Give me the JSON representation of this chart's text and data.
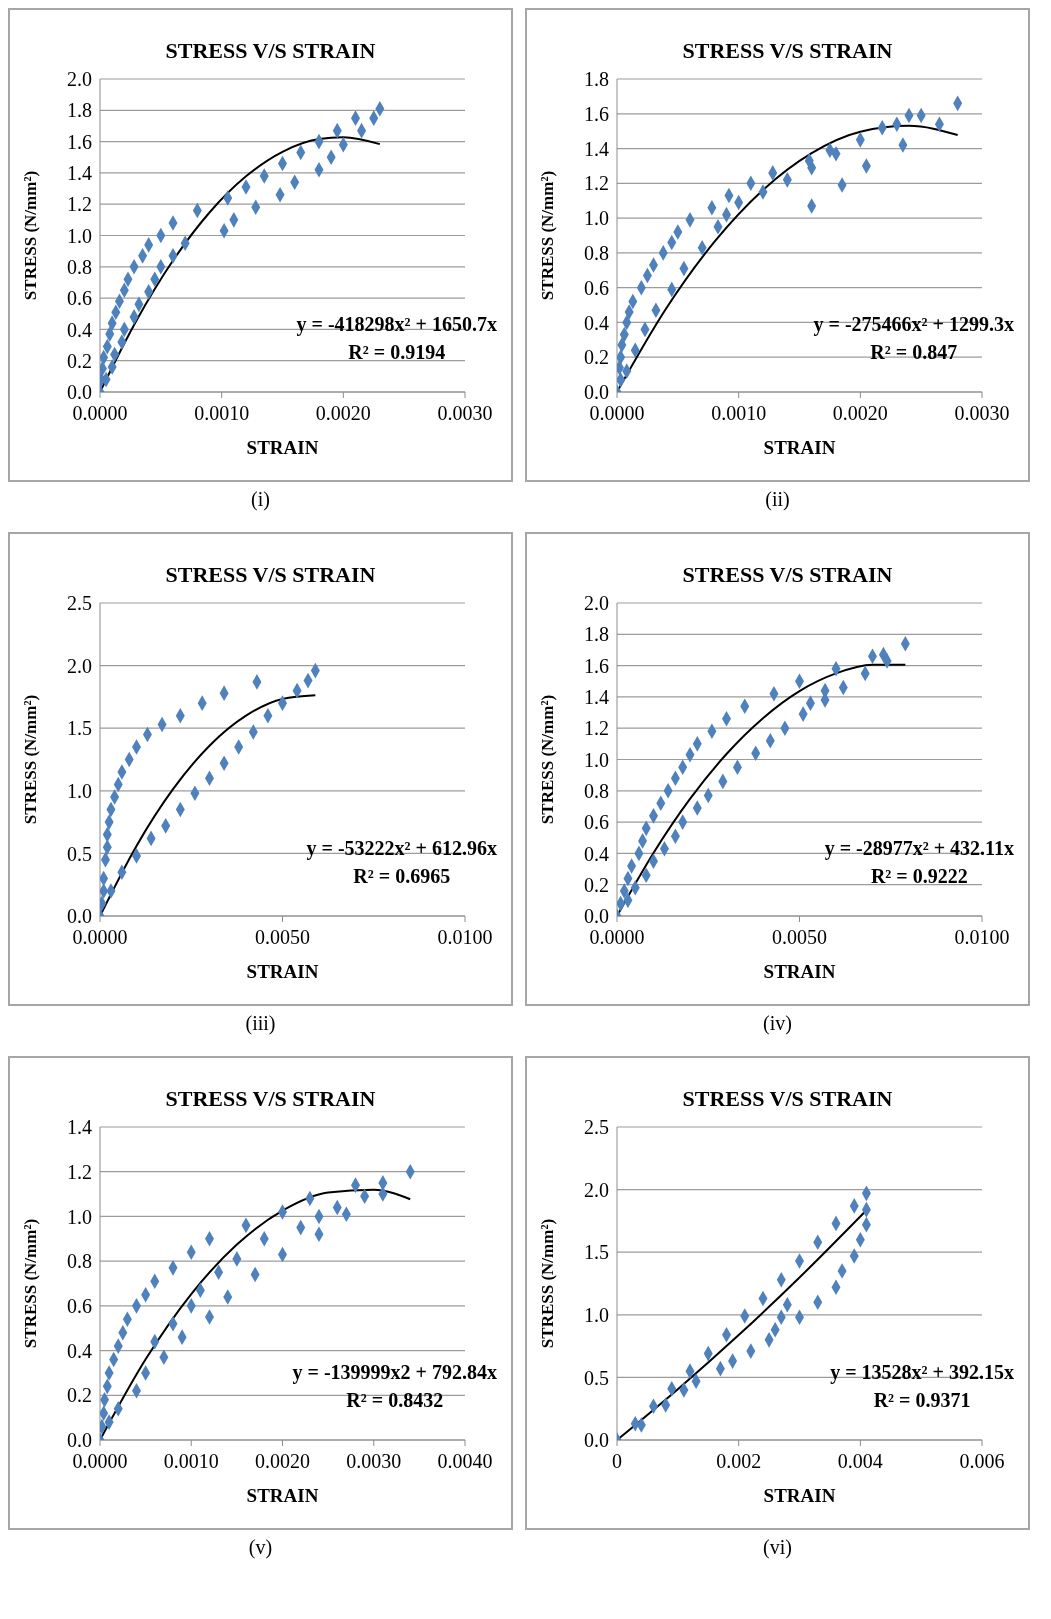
{
  "chart_data": [
    {
      "type": "scatter",
      "title": "STRESS V/S STRAIN",
      "xlabel": "STRAIN",
      "ylabel": "STRESS (N/mm²)",
      "grid": "y",
      "marker": "diamond",
      "annotations": [
        "y = -418298x² + 1650.7x",
        "R² = 0.9194",
        "(i)"
      ],
      "xlim": [
        0,
        0.003
      ],
      "xticks": [
        {
          "value": 0,
          "label": "0.0000"
        },
        {
          "value": 0.001,
          "label": "0.0010"
        },
        {
          "value": 0.002,
          "label": "0.0020"
        },
        {
          "value": 0.003,
          "label": "0.0030"
        }
      ],
      "ylim": [
        0,
        2
      ],
      "yticks": [
        {
          "value": 0,
          "label": "0.0"
        },
        0.2,
        0.4,
        0.6,
        0.8,
        {
          "value": 1,
          "label": "1.0"
        },
        1.2,
        1.4,
        1.6,
        1.8,
        {
          "value": 2,
          "label": "2.0"
        }
      ],
      "series": [
        {
          "color": "#4f81bd",
          "x": [
            0,
            1e-05,
            2e-05,
            3e-05,
            6e-05,
            8e-05,
            0.0001,
            0.00013,
            0.00016,
            0.0002,
            0.00023,
            0.00028,
            0.00035,
            0.0004,
            0.0005,
            0.0006,
            0.0008,
            0.00105,
            0.0012,
            0.00135,
            0.0015,
            0.00165,
            0.0018,
            0.00195,
            0.0021,
            0.0023,
            5e-05,
            0.0001,
            0.00012,
            0.00018,
            0.0002,
            0.00028,
            0.00032,
            0.0004,
            0.00045,
            0.0005,
            0.0006,
            0.0007,
            0.00102,
            0.0011,
            0.00128,
            0.00148,
            0.0016,
            0.0018,
            0.0019,
            0.002,
            0.00215,
            0.00225
          ],
          "values": [
            0,
            0.08,
            0.15,
            0.22,
            0.29,
            0.37,
            0.44,
            0.51,
            0.58,
            0.65,
            0.72,
            0.8,
            0.87,
            0.94,
            1.0,
            1.08,
            1.16,
            1.24,
            1.31,
            1.38,
            1.46,
            1.53,
            1.6,
            1.67,
            1.75,
            1.81,
            0.08,
            0.16,
            0.24,
            0.32,
            0.4,
            0.48,
            0.56,
            0.64,
            0.72,
            0.8,
            0.87,
            0.95,
            1.03,
            1.1,
            1.18,
            1.26,
            1.34,
            1.42,
            1.5,
            1.58,
            1.67,
            1.75
          ]
        },
        {
          "type": "line",
          "marker": "none",
          "color": "#000000",
          "x": [
            0,
            0.0003,
            0.0006,
            0.0009,
            0.0012,
            0.0015,
            0.0018,
            0.002,
            0.0023
          ],
          "values": [
            0,
            0.457,
            0.84,
            1.147,
            1.378,
            1.535,
            1.616,
            1.628,
            1.584
          ]
        }
      ]
    },
    {
      "type": "scatter",
      "title": "STRESS V/S STRAIN",
      "xlabel": "STRAIN",
      "ylabel": "STRESS (N/mm²)",
      "grid": "y",
      "marker": "diamond",
      "annotations": [
        "y = -275466x² + 1299.3x",
        "R² = 0.847",
        "(ii)"
      ],
      "xlim": [
        0,
        0.003
      ],
      "xticks": [
        {
          "value": 0,
          "label": "0.0000"
        },
        {
          "value": 0.001,
          "label": "0.0010"
        },
        {
          "value": 0.002,
          "label": "0.0020"
        },
        {
          "value": 0.003,
          "label": "0.0030"
        }
      ],
      "ylim": [
        0,
        1.8
      ],
      "yticks": [
        {
          "value": 0,
          "label": "0.0"
        },
        0.2,
        0.4,
        0.6,
        0.8,
        {
          "value": 1,
          "label": "1.0"
        },
        1.2,
        1.4,
        1.6,
        1.8
      ],
      "series": [
        {
          "color": "#4f81bd",
          "x": [
            0,
            1e-05,
            2e-05,
            3e-05,
            4e-05,
            6e-05,
            8e-05,
            0.0001,
            0.00013,
            0.0002,
            0.00025,
            0.0003,
            0.00038,
            0.00045,
            0.0005,
            0.0006,
            0.00078,
            0.00092,
            0.0011,
            0.00128,
            0.00158,
            0.00175,
            0.002,
            0.00218,
            0.0023,
            0.0024,
            0.0025,
            0.0028,
            3e-05,
            8e-05,
            0.00015,
            0.00023,
            0.00032,
            0.00045,
            0.00055,
            0.0007,
            0.00083,
            0.0009,
            0.001,
            0.0012,
            0.0014,
            0.0016,
            0.00185,
            0.00205,
            0.00235,
            0.00265,
            0.0018,
            0.0016
          ],
          "values": [
            0,
            null,
            0.14,
            0.2,
            0.27,
            0.33,
            0.4,
            0.46,
            0.52,
            0.6,
            0.67,
            0.73,
            0.8,
            0.86,
            0.92,
            0.99,
            1.06,
            1.13,
            1.2,
            1.26,
            1.33,
            1.39,
            1.45,
            1.52,
            1.54,
            1.59,
            1.59,
            1.66,
            0.07,
            0.12,
            0.24,
            0.36,
            0.47,
            0.59,
            0.71,
            0.83,
            0.95,
            1.02,
            1.09,
            1.15,
            1.22,
            1.07,
            1.19,
            1.3,
            1.42,
            1.54,
            1.37,
            1.29
          ]
        },
        {
          "type": "line",
          "marker": "none",
          "color": "#000000",
          "x": [
            0,
            0.0004,
            0.0008,
            0.0012,
            0.0016,
            0.002,
            0.0024,
            0.0028
          ],
          "values": [
            0,
            0.476,
            0.863,
            1.162,
            1.374,
            1.497,
            1.531,
            1.478
          ]
        }
      ]
    },
    {
      "type": "scatter",
      "title": "STRESS V/S STRAIN",
      "xlabel": "STRAIN",
      "ylabel": "STRESS (N/mm²)",
      "grid": "y",
      "marker": "diamond",
      "annotations": [
        "y = -53222x² + 612.96x",
        "R² = 0.6965",
        "(iii)"
      ],
      "xlim": [
        0,
        0.01
      ],
      "xticks": [
        {
          "value": 0,
          "label": "0.0000"
        },
        {
          "value": 0.005,
          "label": "0.0050"
        },
        {
          "value": 0.01,
          "label": "0.0100"
        }
      ],
      "ylim": [
        0,
        2.5
      ],
      "yticks": [
        {
          "value": 0,
          "label": "0.0"
        },
        0.5,
        {
          "value": 1,
          "label": "1.0"
        },
        1.5,
        {
          "value": 2,
          "label": "2.0"
        },
        2.5
      ],
      "series": [
        {
          "color": "#4f81bd",
          "x": [
            0,
            5e-05,
            0.0001,
            0.0001,
            0.00015,
            0.0002,
            0.0002,
            0.00025,
            0.0003,
            0.0004,
            0.0005,
            0.0006,
            0.0008,
            0.001,
            0.0013,
            0.0017,
            0.0022,
            0.0028,
            0.0034,
            0.0043,
            0.0003,
            0.0006,
            0.001,
            0.0014,
            0.0018,
            0.0022,
            0.0026,
            0.003,
            0.0034,
            0.0038,
            0.0042,
            0.0046,
            0.005,
            0.0054,
            0.0057,
            0.0059
          ],
          "values": [
            0,
            0.1,
            0.2,
            0.3,
            0.45,
            0.55,
            0.65,
            0.75,
            0.85,
            0.95,
            1.05,
            1.15,
            1.25,
            1.35,
            1.45,
            1.53,
            1.6,
            1.7,
            1.78,
            1.87,
            0.2,
            0.35,
            0.48,
            0.62,
            0.72,
            0.85,
            0.98,
            1.1,
            1.22,
            1.35,
            1.47,
            1.6,
            1.7,
            1.8,
            1.88,
            1.96
          ]
        },
        {
          "type": "line",
          "marker": "none",
          "color": "#000000",
          "x": [
            0,
            0.001,
            0.002,
            0.003,
            0.004,
            0.005,
            0.0059
          ],
          "values": [
            0,
            0.56,
            1.013,
            1.36,
            1.6,
            1.734,
            1.763
          ]
        }
      ]
    },
    {
      "type": "scatter",
      "title": "STRESS V/S STRAIN",
      "xlabel": "STRAIN",
      "ylabel": "STRESS (N/mm²)",
      "grid": "y",
      "marker": "diamond",
      "annotations": [
        "y = -28977x² + 432.11x",
        "R² = 0.9222",
        "(iv)"
      ],
      "xlim": [
        0,
        0.01
      ],
      "xticks": [
        {
          "value": 0,
          "label": "0.0000"
        },
        {
          "value": 0.005,
          "label": "0.0050"
        },
        {
          "value": 0.01,
          "label": "0.0100"
        }
      ],
      "ylim": [
        0,
        2
      ],
      "yticks": [
        {
          "value": 0,
          "label": "0.0"
        },
        0.2,
        0.4,
        0.6,
        0.8,
        {
          "value": 1,
          "label": "1.0"
        },
        1.2,
        1.4,
        1.6,
        1.8,
        {
          "value": 2,
          "label": "2.0"
        }
      ],
      "series": [
        {
          "color": "#4f81bd",
          "x": [
            0,
            0.0001,
            0.0002,
            0.0003,
            0.0004,
            0.0006,
            0.0007,
            0.0008,
            0.001,
            0.0012,
            0.0014,
            0.0016,
            0.0018,
            0.002,
            0.0022,
            0.0026,
            0.003,
            0.0035,
            0.0043,
            0.005,
            0.006,
            0.007,
            0.0073,
            0.0079,
            0.0003,
            0.0005,
            0.0008,
            0.001,
            0.0013,
            0.0016,
            0.0018,
            0.0022,
            0.0025,
            0.0029,
            0.0033,
            0.0038,
            0.0042,
            0.0046,
            0.0051,
            0.0053,
            0.0057,
            0.0062,
            0.0068,
            0.0074,
            0.0057
          ],
          "values": [
            0,
            0.08,
            0.16,
            0.24,
            0.32,
            0.4,
            0.48,
            0.56,
            0.64,
            0.72,
            0.8,
            0.88,
            0.95,
            1.03,
            1.1,
            1.18,
            1.26,
            1.34,
            1.42,
            1.5,
            1.58,
            1.66,
            1.67,
            1.74,
            0.1,
            0.18,
            0.26,
            0.35,
            0.43,
            0.51,
            0.6,
            0.69,
            0.77,
            0.86,
            0.95,
            1.04,
            1.12,
            1.2,
            1.29,
            1.36,
            1.38,
            1.46,
            1.55,
            1.63,
            1.44
          ]
        },
        {
          "type": "line",
          "marker": "none",
          "color": "#000000",
          "x": [
            0,
            0.001,
            0.002,
            0.003,
            0.004,
            0.005,
            0.006,
            0.007,
            0.0079
          ],
          "values": [
            0,
            0.403,
            0.748,
            1.035,
            1.264,
            1.437,
            1.55,
            1.605,
            1.606
          ]
        }
      ]
    },
    {
      "type": "scatter",
      "title": "STRESS V/S STRAIN",
      "xlabel": "STRAIN",
      "ylabel": "STRESS (N/mm²)",
      "grid": "y",
      "marker": "diamond",
      "annotations": [
        "y = -139999x2 + 792.84x",
        "R² = 0.8432",
        "(v)"
      ],
      "xlim": [
        0,
        0.004
      ],
      "xticks": [
        {
          "value": 0,
          "label": "0.0000"
        },
        {
          "value": 0.001,
          "label": "0.0010"
        },
        {
          "value": 0.002,
          "label": "0.0020"
        },
        {
          "value": 0.003,
          "label": "0.0030"
        },
        {
          "value": 0.004,
          "label": "0.0040"
        }
      ],
      "ylim": [
        0,
        1.4
      ],
      "yticks": [
        {
          "value": 0,
          "label": "0.0"
        },
        0.2,
        0.4,
        0.6,
        0.8,
        {
          "value": 1,
          "label": "1.0"
        },
        1.2,
        1.4
      ],
      "series": [
        {
          "color": "#4f81bd",
          "x": [
            0,
            2e-05,
            4e-05,
            5e-05,
            8e-05,
            0.0001,
            0.00015,
            0.0002,
            0.00025,
            0.0003,
            0.0004,
            0.0005,
            0.0006,
            0.0008,
            0.001,
            0.0012,
            0.0016,
            0.002,
            0.0023,
            0.0028,
            0.0031,
            0.0034,
            0.0001,
            0.0002,
            0.0004,
            0.0005,
            0.0007,
            0.0006,
            0.0008,
            0.0009,
            0.001,
            0.0011,
            0.0012,
            0.0013,
            0.0014,
            0.0015,
            0.0017,
            0.0018,
            0.002,
            0.0022,
            0.0024,
            0.0024,
            0.0026,
            0.0027,
            0.0029,
            0.0031
          ],
          "values": [
            0,
            0.06,
            0.12,
            0.18,
            0.24,
            0.3,
            0.36,
            0.42,
            0.48,
            0.54,
            0.6,
            0.65,
            0.71,
            0.77,
            0.84,
            0.9,
            0.96,
            1.02,
            1.08,
            1.14,
            1.15,
            1.2,
            0.08,
            0.14,
            0.22,
            0.3,
            0.37,
            0.44,
            0.52,
            0.46,
            0.6,
            0.67,
            0.55,
            0.75,
            0.64,
            0.81,
            0.74,
            0.9,
            0.83,
            0.95,
            0.92,
            1.0,
            1.04,
            1.01,
            1.09,
            1.1
          ]
        },
        {
          "type": "line",
          "marker": "none",
          "color": "#000000",
          "x": [
            0,
            0.0005,
            0.001,
            0.0015,
            0.002,
            0.0025,
            0.003,
            0.0034
          ],
          "values": [
            0,
            0.361,
            0.653,
            0.874,
            1.026,
            1.107,
            1.119,
            1.077
          ]
        }
      ]
    },
    {
      "type": "scatter",
      "title": "STRESS V/S STRAIN",
      "xlabel": "STRAIN",
      "ylabel": "STRESS (N/mm²)",
      "grid": "y",
      "marker": "diamond",
      "annotations": [
        "y = 13528x² + 392.15x",
        "R² = 0.9371",
        "(vi)"
      ],
      "xlim": [
        0,
        0.006
      ],
      "xticks": [
        0,
        0.002,
        0.004,
        0.006
      ],
      "ylim": [
        0,
        2.5
      ],
      "yticks": [
        {
          "value": 0,
          "label": "0.0"
        },
        0.5,
        {
          "value": 1,
          "label": "1.0"
        },
        1.5,
        {
          "value": 2,
          "label": "2.0"
        },
        2.5
      ],
      "series": [
        {
          "color": "#4f81bd",
          "x": [
            0,
            0.0003,
            0.0006,
            0.0009,
            0.0012,
            0.0015,
            0.0018,
            0.0021,
            0.0024,
            0.0027,
            0.003,
            0.0033,
            0.0036,
            0.0039,
            0.0041,
            0.0004,
            0.0008,
            0.0011,
            0.0013,
            0.0017,
            0.0019,
            0.0022,
            0.0025,
            0.0026,
            0.0027,
            0.0028,
            0.003,
            0.0033,
            0.0036,
            0.0037,
            0.0039,
            0.004,
            0.0041,
            0.0041
          ],
          "values": [
            0,
            0.13,
            0.27,
            0.41,
            0.55,
            0.69,
            0.84,
            0.99,
            1.13,
            1.28,
            1.43,
            1.58,
            1.73,
            1.87,
            1.97,
            0.12,
            0.28,
            0.4,
            0.47,
            0.57,
            0.63,
            0.71,
            0.8,
            0.88,
            0.98,
            1.08,
            0.98,
            1.1,
            1.22,
            1.35,
            1.47,
            1.6,
            1.72,
            1.84
          ]
        },
        {
          "type": "line",
          "marker": "none",
          "color": "#000000",
          "x": [
            0,
            0.001,
            0.002,
            0.003,
            0.0041
          ],
          "values": [
            0,
            0.406,
            0.838,
            1.298,
            1.835
          ]
        }
      ]
    }
  ]
}
